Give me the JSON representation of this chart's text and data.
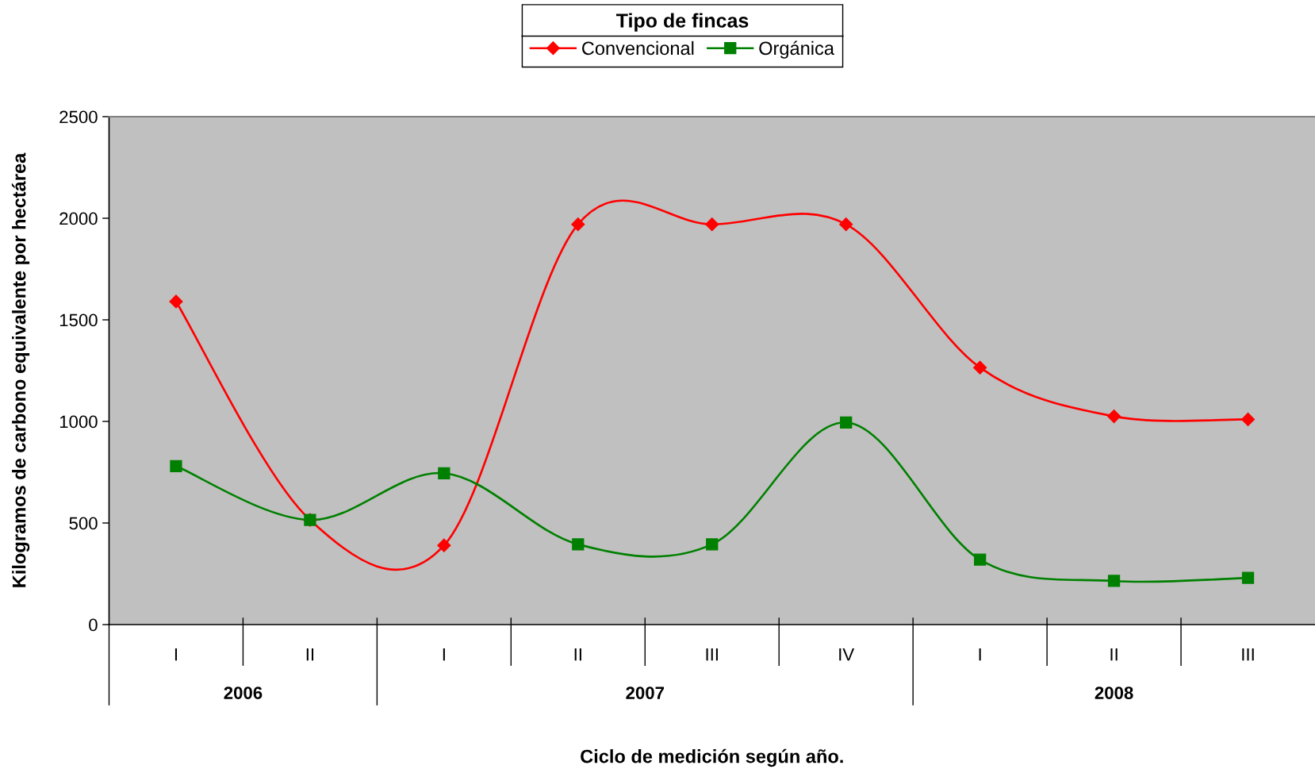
{
  "chart_data": {
    "type": "line",
    "categories": [
      "I",
      "II",
      "I",
      "II",
      "III",
      "IV",
      "I",
      "II",
      "III"
    ],
    "xlabel": "Ciclo de medición según año.",
    "ylabel": "Kilogramos de carbono equivalente por hectárea",
    "legend_title": "Tipo de fincas",
    "annotations": [
      "2006",
      "2007",
      "2008"
    ],
    "series": [
      {
        "name": "Convencional",
        "color": "#ff0000",
        "marker": "diamond",
        "values": [
          1590,
          515,
          390,
          1970,
          1970,
          1970,
          1265,
          1025,
          1010
        ]
      },
      {
        "name": "Orgánica",
        "color": "#008000",
        "marker": "square",
        "values": [
          780,
          515,
          745,
          395,
          395,
          995,
          320,
          215,
          230
        ]
      }
    ],
    "ylim": [
      0,
      2500
    ],
    "yticks": [
      0,
      500,
      1000,
      1500,
      2000,
      2500
    ],
    "grid": false,
    "legend": "top",
    "line_style": "solid"
  }
}
